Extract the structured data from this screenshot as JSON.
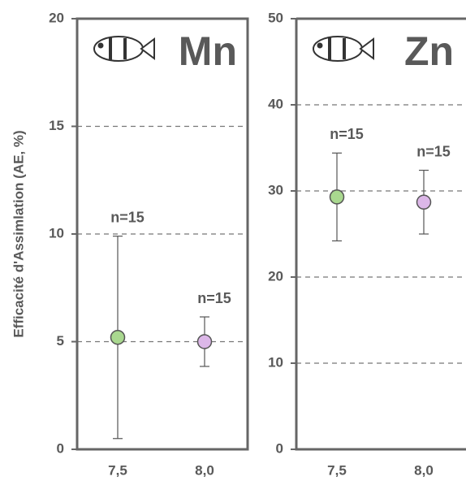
{
  "chart_data": [
    {
      "type": "errorpoint",
      "title": "Mn",
      "y_label": "Efficacité d'Assimlation (AE, %)",
      "categories": [
        "7,5",
        "8,0"
      ],
      "values": [
        5.2,
        5.0
      ],
      "errors": [
        4.7,
        1.15
      ],
      "colors": [
        "#a9d88f",
        "#dcb7e8"
      ],
      "annotations": [
        "n=15",
        "n=15"
      ],
      "ylim": [
        0,
        20
      ],
      "yticks": [
        0,
        5,
        10,
        15,
        20
      ],
      "grid": true
    },
    {
      "type": "errorpoint",
      "title": "Zn",
      "categories": [
        "7,5",
        "8,0"
      ],
      "values": [
        29.3,
        28.7
      ],
      "errors": [
        5.1,
        3.7
      ],
      "colors": [
        "#a9d88f",
        "#dcb7e8"
      ],
      "annotations": [
        "n=15",
        "n=15"
      ],
      "ylim": [
        0,
        50
      ],
      "yticks": [
        0,
        10,
        20,
        30,
        40,
        50
      ],
      "grid": true
    }
  ]
}
